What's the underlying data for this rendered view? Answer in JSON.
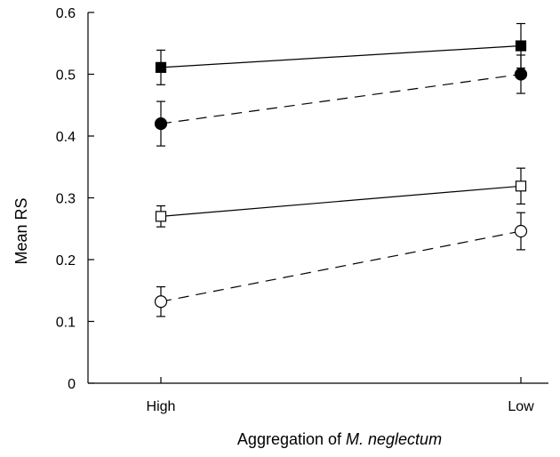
{
  "chart_data": {
    "type": "line",
    "xlabel_prefix": "Aggregation of ",
    "xlabel_italic": "M. neglectum",
    "ylabel": "Mean RS",
    "categories": [
      "High",
      "Low"
    ],
    "ylim": [
      0,
      0.6
    ],
    "yticks": [
      "0",
      "0.1",
      "0.2",
      "0.3",
      "0.4",
      "0.5",
      "0.6"
    ],
    "grid": false,
    "series": [
      {
        "marker": "square",
        "filled": true,
        "dashed": false,
        "values": [
          0.511,
          0.546
        ],
        "errors": [
          0.028,
          0.036
        ]
      },
      {
        "marker": "circle",
        "filled": true,
        "dashed": true,
        "values": [
          0.42,
          0.5
        ],
        "errors": [
          0.036,
          0.031
        ]
      },
      {
        "marker": "square",
        "filled": false,
        "dashed": false,
        "values": [
          0.27,
          0.319
        ],
        "errors": [
          0.017,
          0.029
        ]
      },
      {
        "marker": "circle",
        "filled": false,
        "dashed": true,
        "values": [
          0.132,
          0.246
        ],
        "errors": [
          0.024,
          0.03
        ]
      }
    ]
  }
}
